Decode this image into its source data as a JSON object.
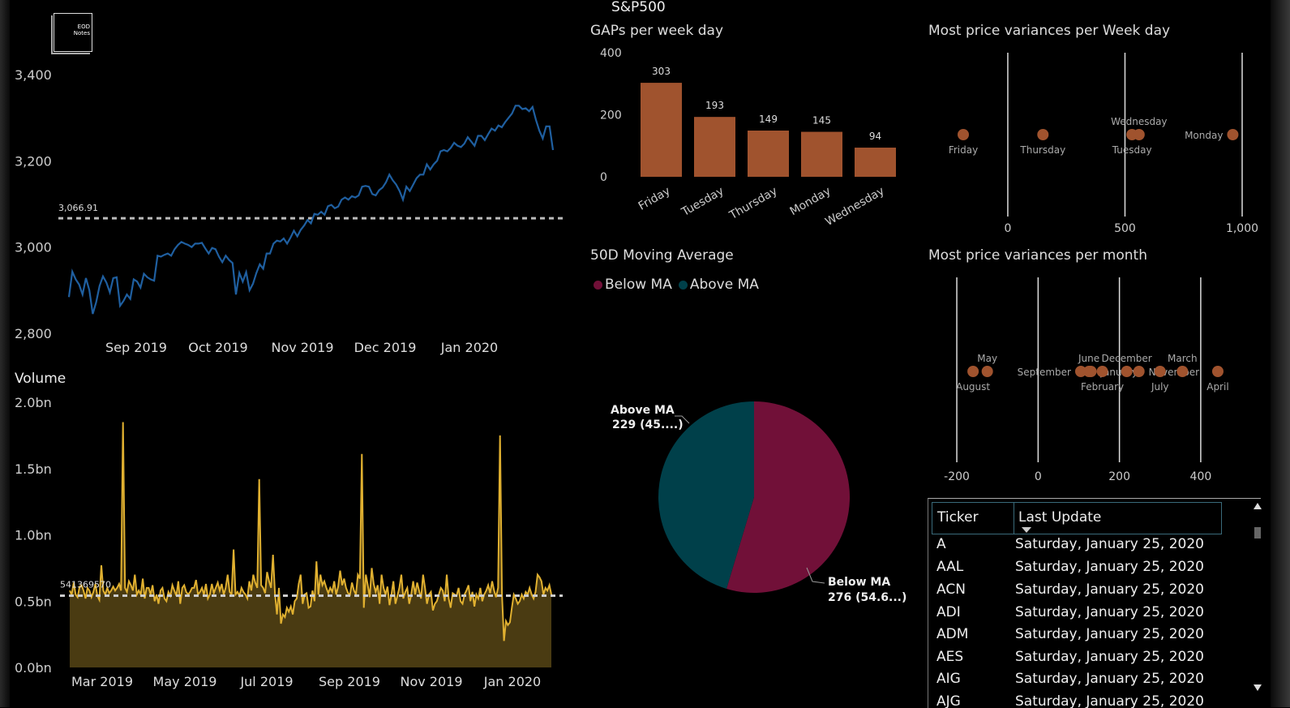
{
  "page_title": "S&P500",
  "logo_text": "EOD Notes",
  "colors": {
    "price_line": "#1f5fa0",
    "volume": "#e0b030",
    "volume_fill": "#4a3b12",
    "gap_bar": "#a0532e",
    "dot": "#a0532e",
    "below_ma": "#711038",
    "above_ma": "#00404a"
  },
  "chart_data": [
    {
      "id": "price",
      "type": "line",
      "title": "",
      "x_ticks": [
        "Sep 2019",
        "Oct 2019",
        "Nov 2019",
        "Dec 2019",
        "Jan 2020"
      ],
      "y_ticks": [
        "3,400",
        "3,200",
        "3,000",
        "2,800"
      ],
      "ylim": [
        2800,
        3400
      ],
      "reference_line": {
        "value": 3066.91,
        "label": "3,066.91"
      },
      "values": [
        2884,
        2943,
        2925,
        2913,
        2890,
        2928,
        2900,
        2845,
        2872,
        2910,
        2932,
        2918,
        2895,
        2928,
        2930,
        2864,
        2875,
        2890,
        2880,
        2925,
        2920,
        2906,
        2938,
        2930,
        2925,
        2922,
        2980,
        2978,
        2982,
        2985,
        2980,
        2995,
        3005,
        3012,
        3008,
        3005,
        3000,
        3008,
        3008,
        3010,
        2997,
        2985,
        2998,
        2995,
        2978,
        2965,
        2980,
        2970,
        2963,
        2890,
        2940,
        2920,
        2942,
        2900,
        2915,
        2940,
        2960,
        2950,
        2985,
        2985,
        3008,
        3015,
        3013,
        3020,
        3008,
        3022,
        3038,
        3025,
        3040,
        3050,
        3063,
        3055,
        3077,
        3075,
        3082,
        3075,
        3095,
        3098,
        3090,
        3094,
        3110,
        3115,
        3110,
        3118,
        3115,
        3120,
        3140,
        3142,
        3140,
        3123,
        3120,
        3132,
        3138,
        3150,
        3168,
        3155,
        3145,
        3130,
        3110,
        3140,
        3130,
        3145,
        3160,
        3168,
        3168,
        3192,
        3180,
        3192,
        3200,
        3222,
        3225,
        3222,
        3230,
        3242,
        3235,
        3232,
        3240,
        3255,
        3245,
        3235,
        3258,
        3258,
        3248,
        3262,
        3275,
        3270,
        3282,
        3278,
        3290,
        3300,
        3310,
        3328,
        3328,
        3320,
        3322,
        3315,
        3325,
        3295,
        3270,
        3252,
        3280,
        3280,
        3225
      ],
      "tooltip_unused": null
    },
    {
      "id": "volume",
      "type": "area",
      "title": "Volume",
      "x_ticks": [
        "Mar 2019",
        "May 2019",
        "Jul 2019",
        "Sep 2019",
        "Nov 2019",
        "Jan 2020"
      ],
      "y_ticks": [
        "2.0bn",
        "1.5bn",
        "1.0bn",
        "0.5bn",
        "0.0bn"
      ],
      "ylim": [
        0,
        2.0
      ],
      "reference_line": {
        "value": 0.5414,
        "label": "541369570"
      },
      "values": [
        0.58,
        0.55,
        0.64,
        0.55,
        0.53,
        0.61,
        0.62,
        0.58,
        0.52,
        0.6,
        0.58,
        0.53,
        0.57,
        0.63,
        0.54,
        0.51,
        0.77,
        0.58,
        0.55,
        0.6,
        0.56,
        0.58,
        0.61,
        0.58,
        0.6,
        0.63,
        0.58,
        1.85,
        0.6,
        0.57,
        0.65,
        0.62,
        0.58,
        0.7,
        0.55,
        0.58,
        0.55,
        0.67,
        0.52,
        0.6,
        0.6,
        0.55,
        0.62,
        0.5,
        0.55,
        0.48,
        0.58,
        0.6,
        0.52,
        0.5,
        0.57,
        0.54,
        0.62,
        0.58,
        0.54,
        0.65,
        0.48,
        0.6,
        0.62,
        0.57,
        0.55,
        0.57,
        0.6,
        0.6,
        0.66,
        0.55,
        0.57,
        0.6,
        0.55,
        0.63,
        0.52,
        0.55,
        0.63,
        0.56,
        0.6,
        0.64,
        0.58,
        0.63,
        0.55,
        0.6,
        0.7,
        0.57,
        0.55,
        0.89,
        0.55,
        0.57,
        0.54,
        0.6,
        0.57,
        0.55,
        0.52,
        0.65,
        0.58,
        0.7,
        0.64,
        0.6,
        1.42,
        0.62,
        0.6,
        0.56,
        0.72,
        0.65,
        0.6,
        0.85,
        0.55,
        0.4,
        0.6,
        0.33,
        0.4,
        0.38,
        0.45,
        0.42,
        0.46,
        0.4,
        0.5,
        0.52,
        0.63,
        0.7,
        0.48,
        0.55,
        0.56,
        0.45,
        0.46,
        0.58,
        0.5,
        0.8,
        0.55,
        0.7,
        0.62,
        0.65,
        0.6,
        0.56,
        0.6,
        0.57,
        0.65,
        0.55,
        0.61,
        0.73,
        0.62,
        0.67,
        0.6,
        0.56,
        0.55,
        0.64,
        0.58,
        0.55,
        0.7,
        0.67,
        1.61,
        0.45,
        0.7,
        0.62,
        0.53,
        0.75,
        0.63,
        0.57,
        0.62,
        0.48,
        0.7,
        0.6,
        0.55,
        0.61,
        0.47,
        0.55,
        0.65,
        0.48,
        0.54,
        0.6,
        0.7,
        0.52,
        0.57,
        0.6,
        0.48,
        0.55,
        0.65,
        0.55,
        0.64,
        0.58,
        0.52,
        0.7,
        0.6,
        0.48,
        0.55,
        0.57,
        0.43,
        0.48,
        0.5,
        0.55,
        0.6,
        0.58,
        0.5,
        0.7,
        0.52,
        0.45,
        0.56,
        0.55,
        0.54,
        0.6,
        0.5,
        0.48,
        0.55,
        0.58,
        0.62,
        0.5,
        0.57,
        0.46,
        0.55,
        0.52,
        0.6,
        0.5,
        0.55,
        0.58,
        0.62,
        0.56,
        0.65,
        0.58,
        0.53,
        0.6,
        1.75,
        0.55,
        0.2,
        0.35,
        0.32,
        0.34,
        0.45,
        0.55,
        0.52,
        0.48,
        0.5,
        0.55,
        0.52,
        0.57,
        0.55,
        0.6,
        0.55,
        0.52,
        0.57,
        0.7,
        0.68,
        0.65,
        0.55,
        0.6,
        0.58,
        0.62,
        0.55
      ]
    },
    {
      "id": "gaps",
      "type": "bar",
      "title": "GAPs per week day",
      "categories": [
        "Friday",
        "Tuesday",
        "Thursday",
        "Monday",
        "Wednesday"
      ],
      "values": [
        303,
        193,
        149,
        145,
        94
      ],
      "y_ticks": [
        "400",
        "200",
        "0"
      ],
      "ylim": [
        0,
        400
      ]
    },
    {
      "id": "weekday_variance",
      "type": "scatter",
      "title": "Most price variances per Week day",
      "x_ticks": [
        "0",
        "500",
        "1,000"
      ],
      "xlim": [
        -280,
        1000
      ],
      "points": [
        {
          "label": "Friday",
          "x": -190
        },
        {
          "label": "Thursday",
          "x": 150
        },
        {
          "label": "Tuesday",
          "x": 530
        },
        {
          "label": "Wednesday",
          "x": 560
        },
        {
          "label": "Monday",
          "x": 960
        }
      ]
    },
    {
      "id": "month_variance",
      "type": "scatter",
      "title": "Most price variances per month",
      "x_ticks": [
        "-200",
        "0",
        "200",
        "400"
      ],
      "xlim": [
        -240,
        470
      ],
      "points": [
        {
          "label": "August",
          "x": -160
        },
        {
          "label": "May",
          "x": -125
        },
        {
          "label": "September",
          "x": 105
        },
        {
          "label": "June",
          "x": 125
        },
        {
          "label": "January",
          "x": 130
        },
        {
          "label": "February",
          "x": 158
        },
        {
          "label": "December",
          "x": 218
        },
        {
          "label": "November",
          "x": 248
        },
        {
          "label": "July",
          "x": 300
        },
        {
          "label": "March",
          "x": 355
        },
        {
          "label": "April",
          "x": 442
        }
      ]
    },
    {
      "id": "moving_average",
      "type": "pie",
      "title": "50D Moving Average",
      "legend": [
        "Below MA",
        "Above MA"
      ],
      "slices": [
        {
          "name": "Below MA",
          "value": 276,
          "label": "Below MA",
          "detail": "276 (54.6...)"
        },
        {
          "name": "Above MA",
          "value": 229,
          "label": "Above MA",
          "detail": "229 (45....)"
        }
      ]
    }
  ],
  "table": {
    "headers": [
      "Ticker",
      "Last Update"
    ],
    "rows": [
      [
        "A",
        "Saturday, January 25, 2020"
      ],
      [
        "AAL",
        "Saturday, January 25, 2020"
      ],
      [
        "ACN",
        "Saturday, January 25, 2020"
      ],
      [
        "ADI",
        "Saturday, January 25, 2020"
      ],
      [
        "ADM",
        "Saturday, January 25, 2020"
      ],
      [
        "AES",
        "Saturday, January 25, 2020"
      ],
      [
        "AIG",
        "Saturday, January 25, 2020"
      ],
      [
        "AJG",
        "Saturday, January 25, 2020"
      ]
    ]
  }
}
